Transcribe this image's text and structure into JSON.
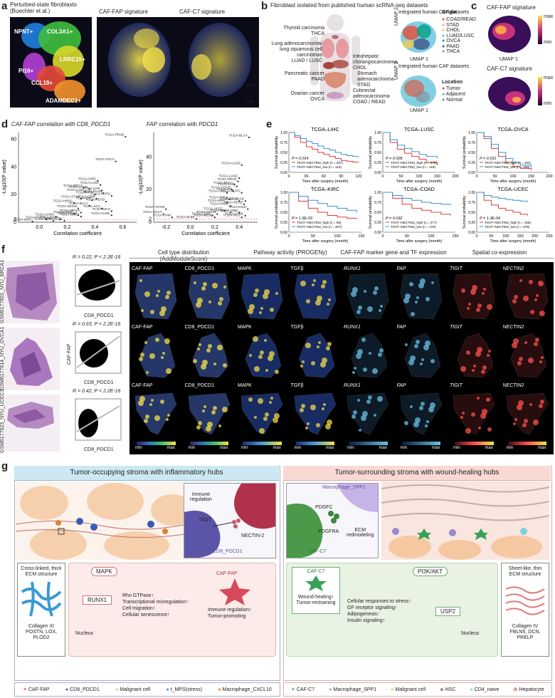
{
  "panel_letters": {
    "a": "a",
    "b": "b",
    "c": "c",
    "d": "d",
    "e": "e",
    "f": "f",
    "g": "g"
  },
  "a": {
    "titles": [
      "Perturbed-state fibroblasts\n(Buechler et al.)",
      "CAF-FAP signature",
      "CAF-C7 signature"
    ],
    "clusters": [
      "NPNT+",
      "COL3A1+",
      "LRRC15+",
      "PI16+",
      "CCL19+",
      "ADAMDEC1+"
    ],
    "scale": [
      "max",
      "min"
    ],
    "colors": {
      "npnt": "#1f7fe0",
      "col3a1": "#3fbf3f",
      "lrrc15": "#d8d82a",
      "pi16": "#b23fd6",
      "ccl19": "#e44a3a",
      "adamdec1": "#f2922a"
    }
  },
  "b": {
    "title": "Fibroblast isolated from published human scRNA-seq datasets",
    "organs": [
      {
        "text": "Thyroid carcinoma\nTHCA"
      },
      {
        "text": "Lung adenocarcinoma/\nlung squamous cell carcinomas\nLUAD / LUSC"
      },
      {
        "text": "Pancreatic cancer\nPAAD"
      },
      {
        "text": "Ovarian cancer\nOVCA"
      },
      {
        "text": "Intrahepatic\ncholangiocarcinoma\nCHOL"
      },
      {
        "text": "Stomach\nadenocarcinoma\nSTAD"
      },
      {
        "text": "Colorectal\nadenocarcinoma\nCOAD / READ"
      }
    ],
    "umap_titles": [
      "Integrated human CAF datasets",
      "Integrated human CAF datasets"
    ],
    "legend_origin_title": "Origin",
    "legend_origin": [
      "COAD/READ",
      "STAD",
      "CHOL",
      "LUAD/LUSC",
      "OVCA",
      "PAAD",
      "THCA"
    ],
    "legend_origin_colors": [
      "#e64b35",
      "#f39b7f",
      "#f2c94c",
      "#4dbbd5",
      "#00a087",
      "#3c5488",
      "#8491b4"
    ],
    "legend_location_title": "Location",
    "legend_location": [
      "Tumor",
      "Adjacent",
      "Normal"
    ],
    "legend_location_colors": [
      "#e64b35",
      "#4dbbd5",
      "#7f7f7f"
    ],
    "umap_axis_x": "UMAP 1",
    "umap_axis_y": "UMAP 2"
  },
  "c": {
    "titles": [
      "CAF-FAP signature",
      "CAF-C7 signature"
    ],
    "scale": [
      "max",
      "min"
    ],
    "umap_axis_x": "UMAP 1",
    "umap_axis_y": "UMAP 2"
  },
  "d": {
    "title_left": "CAF-FAP correlation with CD8_PDCD1",
    "title_right_parts": [
      "FAP",
      " correlation with ",
      "PDCD1"
    ],
    "xlabel": "Correlation coefficient",
    "ylabel": "-Log10(P value)"
  },
  "chart_data": [
    {
      "type": "scatter",
      "title": "CAF-FAP correlation with CD8_PDCD1",
      "xlabel": "Correlation coefficient",
      "ylabel": "-Log10(P value)",
      "xlim": [
        -0.15,
        0.7
      ],
      "ylim": [
        0,
        65
      ],
      "xticks": [
        0.0,
        0.2,
        0.4,
        0.6
      ],
      "yticks": [
        0,
        2,
        20,
        40,
        60
      ],
      "points": [
        {
          "label": "TCGA-PRAD",
          "x": 0.62,
          "y": 62
        },
        {
          "label": "TCGA-THCA",
          "x": 0.55,
          "y": 44
        },
        {
          "label": "TCGA-KIRC",
          "x": 0.42,
          "y": 30
        },
        {
          "label": "TCGA-LUSC",
          "x": 0.44,
          "y": 27
        },
        {
          "label": "TCGA-BRCA",
          "x": 0.32,
          "y": 25
        },
        {
          "label": "TCGA-LUAD",
          "x": 0.36,
          "y": 24
        },
        {
          "label": "TCGA-LIHC",
          "x": 0.45,
          "y": 23
        },
        {
          "label": "TCGA-LGG",
          "x": 0.33,
          "y": 22
        },
        {
          "label": "TCGA-KIRP",
          "x": 0.4,
          "y": 20
        },
        {
          "label": "TCGA-PAAD",
          "x": 0.46,
          "y": 21
        },
        {
          "label": "TCGA-PCPG",
          "x": 0.52,
          "y": 19
        },
        {
          "label": "TCGA-STAD",
          "x": 0.3,
          "y": 17
        },
        {
          "label": "TCGA-GBM",
          "x": 0.41,
          "y": 17
        },
        {
          "label": "TCGA-OV",
          "x": 0.38,
          "y": 16
        },
        {
          "label": "TCGA-READ",
          "x": 0.48,
          "y": 15
        },
        {
          "label": "TCGA-HNSC",
          "x": 0.25,
          "y": 14
        },
        {
          "label": "TCGA-BLCA",
          "x": 0.36,
          "y": 12
        },
        {
          "label": "TCGA-SKCM",
          "x": 0.28,
          "y": 10
        },
        {
          "label": "TCGA-ACC",
          "x": 0.45,
          "y": 10
        },
        {
          "label": "TCGA-KICH",
          "x": 0.52,
          "y": 8
        },
        {
          "label": "TCGA-MESO",
          "x": 0.3,
          "y": 7
        },
        {
          "label": "TCGA-CESC",
          "x": 0.25,
          "y": 6
        },
        {
          "label": "TCGA-THYM",
          "x": 0.28,
          "y": 5
        },
        {
          "label": "TCGA-SARC",
          "x": 0.12,
          "y": 4
        },
        {
          "label": "TCGA-CHOL",
          "x": 0.52,
          "y": 5
        },
        {
          "label": "TCGA-UCEC",
          "x": 0.3,
          "y": 4
        },
        {
          "label": "TCGA-TGCT",
          "x": 0.05,
          "y": 2
        },
        {
          "label": "TCGA-ESCA",
          "x": 0.15,
          "y": 2
        },
        {
          "label": "TCGA-DLBC",
          "x": 0.18,
          "y": 1
        },
        {
          "label": "TCGA-UCS",
          "x": -0.05,
          "y": 0.5
        },
        {
          "label": "TCGA-UVM",
          "x": 0.1,
          "y": 1
        }
      ]
    },
    {
      "type": "scatter",
      "title": "FAP correlation with PDCD1",
      "xlabel": "Correlation coefficient",
      "ylabel": "-Log10(P value)",
      "xlim": [
        -0.3,
        0.55
      ],
      "ylim": [
        0,
        55
      ],
      "xticks": [
        -0.2,
        0.0,
        0.2,
        0.4
      ],
      "yticks": [
        0,
        2,
        20,
        40
      ],
      "points": [
        {
          "label": "TCGA-BLCA",
          "x": 0.48,
          "y": 52
        },
        {
          "label": "TCGA-LUAD",
          "x": 0.42,
          "y": 35
        },
        {
          "label": "TCGA-LUSC",
          "x": 0.4,
          "y": 27
        },
        {
          "label": "TCGA-PRAD",
          "x": 0.39,
          "y": 25
        },
        {
          "label": "TCGA-BRCA",
          "x": 0.36,
          "y": 23
        },
        {
          "label": "TCGA-LIHC",
          "x": 0.38,
          "y": 22
        },
        {
          "label": "TCGA-COAD",
          "x": 0.34,
          "y": 20
        },
        {
          "label": "TCGA-OV",
          "x": 0.35,
          "y": 19
        },
        {
          "label": "TCGA-LGG",
          "x": 0.3,
          "y": 18
        },
        {
          "label": "TCGA-PCPG",
          "x": 0.42,
          "y": 18
        },
        {
          "label": "TCGA-THCA",
          "x": 0.32,
          "y": 14
        },
        {
          "label": "TCGA-STAD",
          "x": 0.4,
          "y": 13
        },
        {
          "label": "TCGA-KIRC",
          "x": 0.3,
          "y": 12
        },
        {
          "label": "TCGA-PAAD",
          "x": 0.45,
          "y": 13
        },
        {
          "label": "TCGA-READ",
          "x": 0.44,
          "y": 11
        },
        {
          "label": "TCGA-HNSC",
          "x": 0.33,
          "y": 10
        },
        {
          "label": "TCGA-KICH",
          "x": 0.47,
          "y": 8
        },
        {
          "label": "TCGA-UCEC",
          "x": 0.28,
          "y": 7
        },
        {
          "label": "TCGA-ESCA",
          "x": 0.33,
          "y": 6
        },
        {
          "label": "TCGA-GBM",
          "x": 0.4,
          "y": 6
        },
        {
          "label": "TCGA-SKCM",
          "x": 0.22,
          "y": 5
        },
        {
          "label": "TCGA-CESC",
          "x": 0.18,
          "y": 4
        },
        {
          "label": "TCGA-MESO",
          "x": 0.2,
          "y": 3
        },
        {
          "label": "TCGA-THYM",
          "x": -0.2,
          "y": 8
        },
        {
          "label": "TCGA-TGCT",
          "x": -0.22,
          "y": 5
        },
        {
          "label": "TCGA-UVM",
          "x": -0.15,
          "y": 3
        },
        {
          "label": "TCGA-DLBC",
          "x": 0.05,
          "y": 2
        },
        {
          "label": "TCGA-ACC",
          "x": 0.42,
          "y": 3
        },
        {
          "label": "TCGA-CHOL",
          "x": 0.45,
          "y": 4
        }
      ]
    },
    {
      "type": "line",
      "title": "TCGA–LIHC",
      "xlabel": "Time after surgery (month)",
      "ylabel": "Survival probability",
      "xlim": [
        0,
        125
      ],
      "ylim": [
        0,
        1
      ],
      "xticks": [
        0,
        30,
        60,
        90,
        120
      ],
      "yticks": [
        0.0,
        0.25,
        0.5,
        0.75,
        1.0
      ],
      "pvalue": "P = 0.014",
      "series": [
        {
          "name": "TIGIT–NECTIN2_high (n = 207)",
          "color": "#e03b3b",
          "x": [
            0,
            10,
            20,
            30,
            40,
            50,
            60,
            70,
            80,
            90,
            100,
            110,
            120
          ],
          "y": [
            1,
            0.88,
            0.75,
            0.64,
            0.58,
            0.5,
            0.45,
            0.4,
            0.35,
            0.3,
            0.28,
            0.26,
            0.25
          ]
        },
        {
          "name": "TIGIT–NECTIN2_low (n = 113)",
          "color": "#3a8fd6",
          "x": [
            0,
            10,
            20,
            30,
            40,
            50,
            60,
            70,
            80,
            90,
            100,
            110,
            120
          ],
          "y": [
            1,
            0.92,
            0.85,
            0.78,
            0.72,
            0.66,
            0.6,
            0.56,
            0.5,
            0.45,
            0.42,
            0.4,
            0.38
          ]
        }
      ]
    },
    {
      "type": "line",
      "title": "TCGA–LUSC",
      "xlabel": "Time after surgery (month)",
      "ylabel": "Survival probability",
      "xlim": [
        0,
        200
      ],
      "ylim": [
        0,
        1
      ],
      "xticks": [
        0,
        50,
        100,
        150,
        200
      ],
      "yticks": [
        0.0,
        0.25,
        0.5,
        0.75,
        1.0
      ],
      "pvalue": "P = 0.028",
      "series": [
        {
          "name": "TIGIT–NECTIN2_high (n = 379)",
          "color": "#e03b3b",
          "x": [
            0,
            20,
            40,
            60,
            80,
            100,
            120,
            150
          ],
          "y": [
            1,
            0.75,
            0.58,
            0.48,
            0.4,
            0.33,
            0.25,
            0.18
          ]
        },
        {
          "name": "TIGIT–NECTIN2_low (n = 116)",
          "color": "#3a8fd6",
          "x": [
            0,
            20,
            40,
            60,
            80,
            100,
            120,
            150
          ],
          "y": [
            1,
            0.82,
            0.68,
            0.6,
            0.52,
            0.45,
            0.4,
            0.35
          ]
        }
      ]
    },
    {
      "type": "line",
      "title": "TCGA–OVCA",
      "xlabel": "Time after surgery (month)",
      "ylabel": "Survival probability",
      "xlim": [
        0,
        200
      ],
      "ylim": [
        0,
        1
      ],
      "xticks": [
        0,
        50,
        100,
        150,
        200
      ],
      "yticks": [
        0.0,
        0.25,
        0.5,
        0.75,
        1.0
      ],
      "pvalue": "P = 0.031",
      "series": [
        {
          "name": "TIGIT–NECTIN2_high (n = 164)",
          "color": "#e03b3b",
          "x": [
            0,
            20,
            40,
            60,
            80,
            100,
            120,
            150
          ],
          "y": [
            1,
            0.85,
            0.6,
            0.4,
            0.25,
            0.15,
            0.1,
            0.05
          ]
        },
        {
          "name": "TIGIT–NECTIN2_low (n = 286)",
          "color": "#3a8fd6",
          "x": [
            0,
            20,
            40,
            60,
            80,
            100,
            120,
            150
          ],
          "y": [
            1,
            0.9,
            0.7,
            0.5,
            0.35,
            0.25,
            0.18,
            0.12
          ]
        }
      ]
    },
    {
      "type": "line",
      "title": "TCGA–KIRC",
      "xlabel": "Time after surgery (month)",
      "ylabel": "Survival probability",
      "xlim": [
        0,
        150
      ],
      "ylim": [
        0,
        1
      ],
      "xticks": [
        0,
        50,
        100,
        150
      ],
      "yticks": [
        0.0,
        0.25,
        0.5,
        0.75,
        1.0
      ],
      "pvalue": "P = 1.5E-03",
      "series": [
        {
          "name": "TIGIT–NECTIN2_high (n = 68)",
          "color": "#e03b3b",
          "x": [
            0,
            20,
            40,
            60,
            80,
            100,
            120,
            140
          ],
          "y": [
            1,
            0.78,
            0.6,
            0.5,
            0.42,
            0.38,
            0.35,
            0.33
          ]
        },
        {
          "name": "TIGIT–NECTIN2_low (n = 467)",
          "color": "#3a8fd6",
          "x": [
            0,
            20,
            40,
            60,
            80,
            100,
            120,
            140
          ],
          "y": [
            1,
            0.9,
            0.8,
            0.72,
            0.65,
            0.6,
            0.55,
            0.5
          ]
        }
      ]
    },
    {
      "type": "line",
      "title": "TCGA–COAD",
      "xlabel": "Time after surgery (month)",
      "ylabel": "Survival probability",
      "xlim": [
        0,
        150
      ],
      "ylim": [
        0,
        1
      ],
      "xticks": [
        0,
        50,
        100,
        150
      ],
      "yticks": [
        0.0,
        0.25,
        0.5,
        0.75,
        1.0
      ],
      "pvalue": "P = 0.032",
      "series": [
        {
          "name": "TIGIT–NECTIN2_high (n = 277)",
          "color": "#e03b3b",
          "x": [
            0,
            20,
            40,
            60,
            80,
            100,
            120,
            140
          ],
          "y": [
            1,
            0.85,
            0.7,
            0.6,
            0.55,
            0.5,
            0.45,
            0.42
          ]
        },
        {
          "name": "TIGIT–NECTIN2_low (n = 178)",
          "color": "#3a8fd6",
          "x": [
            0,
            20,
            40,
            60,
            80,
            100,
            120,
            140
          ],
          "y": [
            1,
            0.92,
            0.85,
            0.8,
            0.75,
            0.72,
            0.7,
            0.68
          ]
        }
      ]
    },
    {
      "type": "line",
      "title": "TCGA–UCEC",
      "xlabel": "Time after surgery (month)",
      "ylabel": "Survival probability",
      "xlim": [
        0,
        250
      ],
      "ylim": [
        0,
        1
      ],
      "xticks": [
        0,
        50,
        100,
        150,
        200,
        250
      ],
      "yticks": [
        0.0,
        0.25,
        0.5,
        0.75,
        1.0
      ],
      "pvalue": "P = 1.3E-04",
      "series": [
        {
          "name": "TIGIT–NECTIN2_high (n = 168)",
          "color": "#e03b3b",
          "x": [
            0,
            25,
            50,
            75,
            100,
            125,
            150,
            175
          ],
          "y": [
            1,
            0.8,
            0.68,
            0.6,
            0.55,
            0.5,
            0.45,
            0.42
          ]
        },
        {
          "name": "TIGIT–NECTIN2_low (n = 378)",
          "color": "#3a8fd6",
          "x": [
            0,
            25,
            50,
            75,
            100,
            125,
            150,
            175
          ],
          "y": [
            1,
            0.92,
            0.88,
            0.85,
            0.82,
            0.8,
            0.78,
            0.76
          ]
        }
      ]
    }
  ],
  "f": {
    "samples": [
      "GSM6177601_NYU_BRCA1",
      "GSM6177614_NYU_OVCA1",
      "GSM6177623_NYU_UCEC3"
    ],
    "stats": [
      "R = 0.22, P < 2.2E-16",
      "R = 0.63, P < 2.2E-16",
      "R = 0.42, P < 2.2E-16"
    ],
    "scatter_ylabel": "CAF-FAP",
    "scatter_xlabel": "CD8_PDCD1",
    "headers": [
      "Cell type distribution (AddModuleScore)",
      "Pathway activity (PROGENy)",
      "CAF-FAP marker gene and TF expression",
      "Spatial co-expression"
    ],
    "tile_labels": [
      "CAF-FAP",
      "CD8_PDCD1",
      "MAPK",
      "TGFβ",
      "RUNX1",
      "FAP",
      "TIGIT",
      "NECTIN2"
    ],
    "scale": [
      "min",
      "max"
    ]
  },
  "g": {
    "left_title": "Tumor-occupying stroma with inflammatory hubs",
    "right_title": "Tumor-surrounding stroma with wound-healing hubs",
    "left_inset": {
      "caf": "CAF-FAP",
      "immune": "Immune\nregulation",
      "tigit": "TIGIT",
      "nectin": "NECTIN-2",
      "cd8": "CD8_PDCD1"
    },
    "left_ecm": {
      "title": "Cross-linked, thick\nECM structure",
      "genes": "Collagen XI\nPOSTN, LOX, PLOD2"
    },
    "left_path": {
      "mapk": "MAPK",
      "runx1": "RUNX1",
      "nucleus": "Nucleus",
      "effects": "Rho GTPase↑\nTranscriptional misregulation↑\nCell migration↑\nCellular senescence↑",
      "caf": "CAF-FAP",
      "out": "Immune regulation↑\nTumor-promoting"
    },
    "right_inset": {
      "mac": "Macrophage_SPP1",
      "pdgfc": "PDGFC",
      "pdgfra": "PDGFRA",
      "ecm": "ECM\nredmodeling",
      "caf": "CAF-C7"
    },
    "right_ecm": {
      "title": "Sheet-like, thin\nECM structure",
      "genes": "Collagen IV\nFBLN5, DCN, PRELP"
    },
    "right_path": {
      "caf": "CAF-C7",
      "out": "Wound-healing↑\nTumor-restraining",
      "pi3k": "PI3K/AKT",
      "usp2": "USP2",
      "nucleus": "Nucleus",
      "effects": "Cellular responses to stress↑\nGF receptor signaling↑\nAdipogenesis↑\nInsulin signaling↑"
    },
    "legend_left": [
      "CAF-FAP",
      "CD8_PDCD1",
      "Malignant cell",
      "t_MPS(stress)",
      "Macrophage_CXCL10"
    ],
    "legend_right": [
      "CAF-C7",
      "Macrophage_SPP1",
      "Malignant cell",
      "HSC",
      "CD4_naive",
      "Hepatocyte"
    ]
  }
}
